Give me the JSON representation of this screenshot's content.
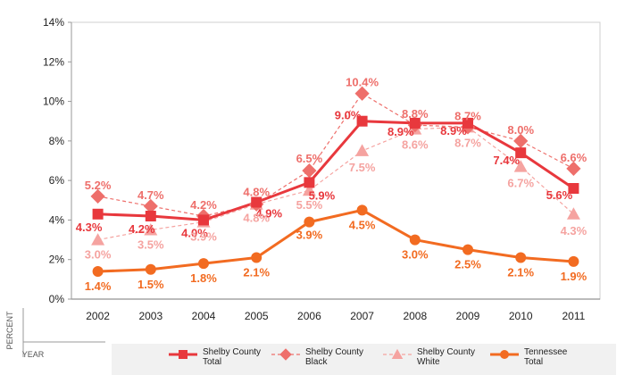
{
  "chart_data": {
    "type": "line",
    "title": "",
    "x": [
      "2002",
      "2003",
      "2004",
      "2005",
      "2006",
      "2007",
      "2008",
      "2009",
      "2010",
      "2011"
    ],
    "ylim": [
      0,
      14
    ],
    "yticks": [
      "0%",
      "2%",
      "4%",
      "6%",
      "8%",
      "10%",
      "12%",
      "14%"
    ],
    "ylabel": "PERCENT",
    "xlabel": "YEAR",
    "grid": false,
    "series": [
      {
        "name": "Shelby County Total",
        "legend_lines": [
          "Shelby County",
          "Total"
        ],
        "values": [
          4.3,
          4.2,
          4.0,
          4.9,
          5.9,
          9.0,
          8.9,
          8.9,
          7.4,
          5.6
        ],
        "labels": [
          "4.3%",
          "4.2%",
          "4.0%",
          "4.9%",
          "5.9%",
          "9.0%",
          "8.9%",
          "8.9%",
          "7.4%",
          "5.6%"
        ],
        "color": "#e8383d",
        "marker": "square",
        "dash": "none"
      },
      {
        "name": "Shelby County Black",
        "legend_lines": [
          "Shelby County",
          "Black"
        ],
        "values": [
          5.2,
          4.7,
          4.2,
          4.8,
          6.5,
          10.4,
          8.8,
          8.7,
          8.0,
          6.6
        ],
        "labels": [
          "5.2%",
          "4.7%",
          "4.2%",
          "4.8%",
          "6.5%",
          "10.4%",
          "8.8%",
          "8.7%",
          "8.0%",
          "6.6%"
        ],
        "color": "#ee6f6b",
        "marker": "diamond",
        "dash": "4,3"
      },
      {
        "name": "Shelby County White",
        "legend_lines": [
          "Shelby County",
          "White"
        ],
        "values": [
          3.0,
          3.5,
          3.9,
          4.8,
          5.5,
          7.5,
          8.6,
          8.7,
          6.7,
          4.3
        ],
        "labels": [
          "3.0%",
          "3.5%",
          "3.9%",
          "4.8%",
          "5.5%",
          "7.5%",
          "8.6%",
          "8.7%",
          "6.7%",
          "4.3%"
        ],
        "color": "#f5a3a0",
        "marker": "triangle",
        "dash": "4,3"
      },
      {
        "name": "Tennessee Total",
        "legend_lines": [
          "Tennessee",
          "Total"
        ],
        "values": [
          1.4,
          1.5,
          1.8,
          2.1,
          3.9,
          4.5,
          3.0,
          2.5,
          2.1,
          1.9
        ],
        "labels": [
          "1.4%",
          "1.5%",
          "1.8%",
          "2.1%",
          "3.9%",
          "4.5%",
          "3.0%",
          "2.5%",
          "2.1%",
          "1.9%"
        ],
        "color": "#f26b21",
        "marker": "circle",
        "dash": "none"
      }
    ]
  }
}
